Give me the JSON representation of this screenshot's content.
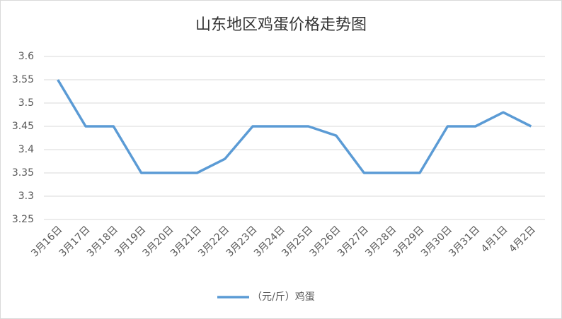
{
  "chart_data": {
    "type": "line",
    "title": "山东地区鸡蛋价格走势图",
    "categories": [
      "3月16日",
      "3月17日",
      "3月18日",
      "3月19日",
      "3月20日",
      "3月21日",
      "3月22日",
      "3月23日",
      "3月24日",
      "3月25日",
      "3月26日",
      "3月27日",
      "3月28日",
      "3月29日",
      "3月30日",
      "3月31日",
      "4月1日",
      "4月2日"
    ],
    "series": [
      {
        "name": "（元/斤）鸡蛋",
        "color": "#5b9bd5",
        "values": [
          3.55,
          3.45,
          3.45,
          3.35,
          3.35,
          3.35,
          3.38,
          3.45,
          3.45,
          3.45,
          3.43,
          3.35,
          3.35,
          3.35,
          3.45,
          3.45,
          3.48,
          3.45
        ]
      }
    ],
    "ylim": [
      3.25,
      3.6
    ],
    "yticks": [
      3.25,
      3.3,
      3.35,
      3.4,
      3.45,
      3.5,
      3.55,
      3.6
    ],
    "grid": true,
    "legend": "bottom"
  }
}
